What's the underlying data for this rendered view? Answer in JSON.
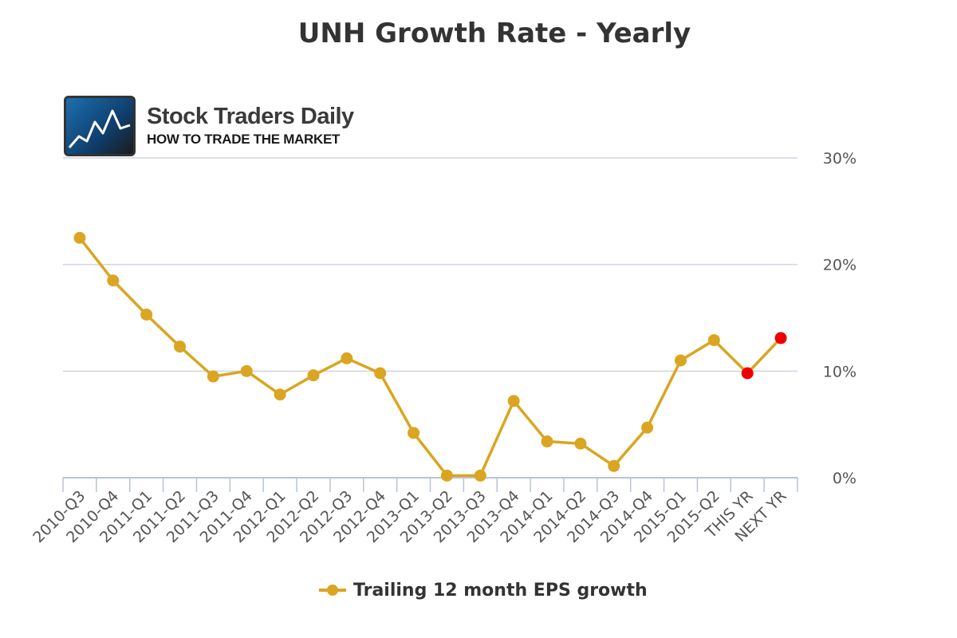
{
  "brand": {
    "name": "Stock Traders Daily",
    "tagline": "HOW TO TRADE THE MARKET"
  },
  "chart_data": {
    "type": "line",
    "title": "UNH Growth Rate - Yearly",
    "xlabel": "",
    "ylabel": "",
    "ylim": [
      0,
      30
    ],
    "yticks": [
      0,
      10,
      20,
      30
    ],
    "ytick_suffix": "%",
    "grid": true,
    "legend_position": "bottom",
    "categories": [
      "2010-Q3",
      "2010-Q4",
      "2011-Q1",
      "2011-Q2",
      "2011-Q3",
      "2011-Q4",
      "2012-Q1",
      "2012-Q2",
      "2012-Q3",
      "2012-Q4",
      "2013-Q1",
      "2013-Q2",
      "2013-Q3",
      "2013-Q4",
      "2014-Q1",
      "2014-Q2",
      "2014-Q3",
      "2014-Q4",
      "2015-Q1",
      "2015-Q2",
      "THIS YR",
      "NEXT YR"
    ],
    "series": [
      {
        "name": "Trailing 12 month EPS growth",
        "color": "#DAA520",
        "estimate_color": "#EE0000",
        "estimate_categories": [
          "THIS YR",
          "NEXT YR"
        ],
        "values": [
          22.5,
          18.5,
          15.3,
          12.3,
          9.5,
          10.0,
          7.8,
          9.6,
          11.2,
          9.8,
          4.2,
          0.2,
          0.2,
          7.2,
          3.4,
          3.2,
          1.1,
          4.7,
          11.0,
          12.9,
          9.8,
          13.1
        ]
      }
    ]
  }
}
